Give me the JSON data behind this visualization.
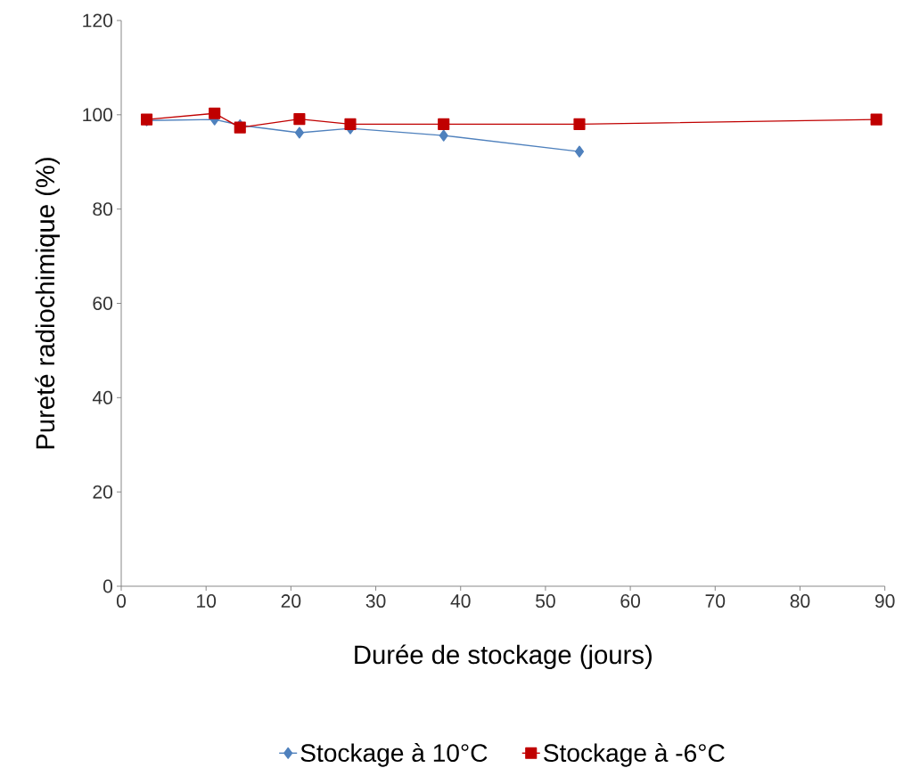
{
  "chart_data": {
    "type": "line",
    "xlabel": "Durée de stockage (jours)",
    "ylabel": "Pureté radiochimique  (%)",
    "xlim": [
      0,
      90
    ],
    "xticks": [
      0,
      10,
      20,
      30,
      40,
      50,
      60,
      70,
      80,
      90
    ],
    "ylim": [
      0,
      120
    ],
    "yticks": [
      0,
      20,
      40,
      60,
      80,
      100,
      120
    ],
    "grid": false,
    "legend": "bottom",
    "series": [
      {
        "name": "Stockage à 10°C",
        "color": "#4f81bd",
        "marker": "diamond",
        "x": [
          3,
          11,
          14,
          21,
          27,
          38,
          54
        ],
        "values": [
          98.8,
          99,
          97.8,
          96.2,
          97.1,
          95.6,
          92.2
        ]
      },
      {
        "name": "Stockage à -6°C",
        "color": "#c00000",
        "marker": "square",
        "x": [
          3,
          11,
          14,
          21,
          27,
          38,
          54,
          89
        ],
        "values": [
          99,
          100.3,
          97.3,
          99.1,
          98,
          98,
          98,
          99
        ]
      }
    ]
  }
}
